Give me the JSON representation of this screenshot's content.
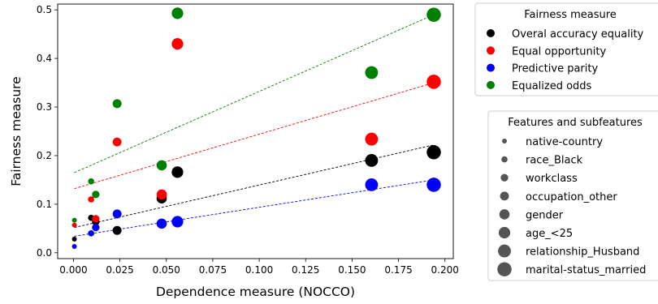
{
  "chart_data": {
    "type": "scatter",
    "xlabel": "Dependence measure (NOCCO)",
    "ylabel": "Fairness measure",
    "xlim": [
      -0.0085,
      0.2045
    ],
    "ylim": [
      -0.012,
      0.512
    ],
    "xticks": [
      0.0,
      0.025,
      0.05,
      0.075,
      0.1,
      0.125,
      0.15,
      0.175,
      0.2
    ],
    "xtick_labels": [
      "0.000",
      "0.025",
      "0.050",
      "0.075",
      "0.100",
      "0.125",
      "0.150",
      "0.175",
      "0.200"
    ],
    "yticks": [
      0.0,
      0.1,
      0.2,
      0.3,
      0.4,
      0.5
    ],
    "ytick_labels": [
      "0.0",
      "0.1",
      "0.2",
      "0.3",
      "0.4",
      "0.5"
    ],
    "grid": false,
    "x": [
      0.0005,
      0.0095,
      0.012,
      0.0235,
      0.0475,
      0.056,
      0.1605,
      0.194
    ],
    "series": [
      {
        "name": "Overal accuracy equality",
        "color": "#000000",
        "values": [
          0.028,
          0.072,
          0.064,
          0.046,
          0.112,
          0.166,
          0.19,
          0.207
        ],
        "trend": [
          0.052,
          0.222
        ]
      },
      {
        "name": "Equal opportunity",
        "color": "#ff0000",
        "values": [
          0.057,
          0.11,
          0.07,
          0.228,
          0.12,
          0.43,
          0.234,
          0.352
        ],
        "trend": [
          0.132,
          0.35
        ]
      },
      {
        "name": "Predictive parity",
        "color": "#0000ff",
        "values": [
          0.013,
          0.04,
          0.052,
          0.08,
          0.06,
          0.064,
          0.14,
          0.14
        ],
        "trend": [
          0.034,
          0.15
        ]
      },
      {
        "name": "Equalized odds",
        "color": "#008000",
        "values": [
          0.067,
          0.147,
          0.12,
          0.307,
          0.18,
          0.493,
          0.371,
          0.49
        ],
        "trend": [
          0.165,
          0.49
        ]
      }
    ],
    "legends": [
      {
        "title": "Fairness measure",
        "placement": "top-right outside",
        "entries": [
          "Overal accuracy equality",
          "Equal opportunity",
          "Predictive parity",
          "Equalized odds"
        ]
      },
      {
        "title": "Features and subfeatures",
        "placement": "right outside",
        "entries": [
          "native-country",
          "race_Black",
          "workclass",
          "occupation_other",
          "gender",
          "age_<25",
          "relationship_Husband",
          "marital-status_married"
        ]
      }
    ]
  }
}
